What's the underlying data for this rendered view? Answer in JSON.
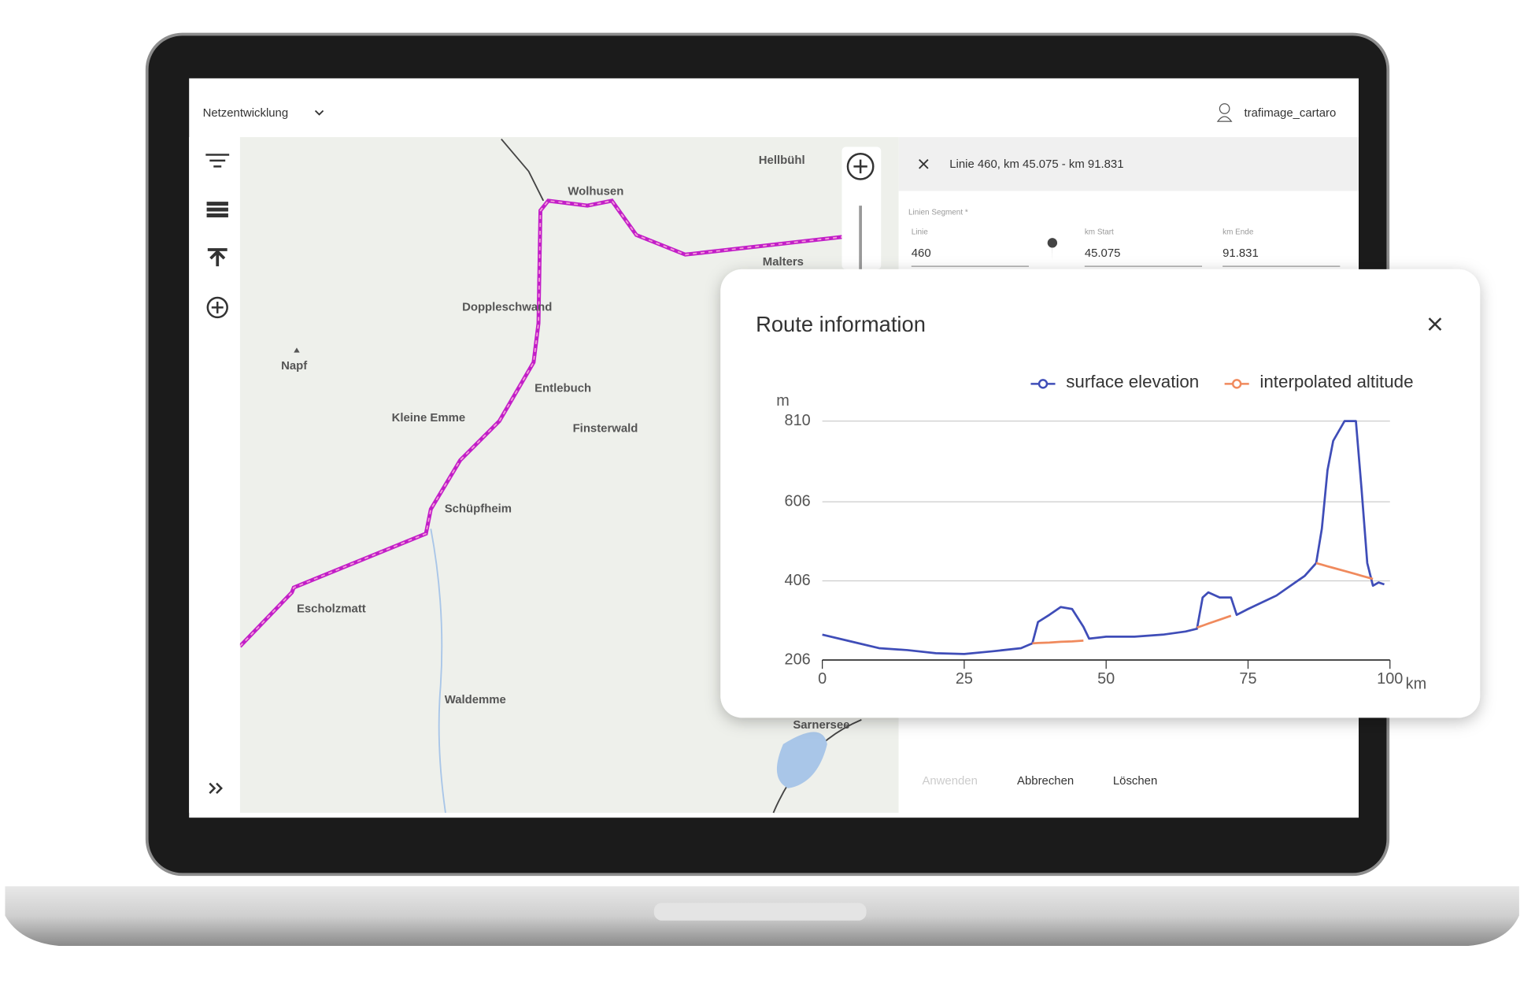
{
  "app": {
    "workspace": "Netzentwicklung",
    "user": "trafimage_cartaro"
  },
  "map": {
    "labels": [
      "Hellbühl",
      "Wolhusen",
      "Malters",
      "Doppleschwand",
      "Napf",
      "Entlebuch",
      "Kleine Emme",
      "Finsterwald",
      "Schüpfheim",
      "Escholzmatt",
      "Waldemme",
      "Sarnersee"
    ]
  },
  "panel": {
    "title": "Linie 460, km 45.075 - km 91.831",
    "segment_label": "Linien Segment *",
    "fields": [
      {
        "label": "Linie",
        "value": "460"
      },
      {
        "label": "km Start",
        "value": "45.075"
      },
      {
        "label": "km Ende",
        "value": "91.831"
      }
    ],
    "buttons": [
      "Anwenden",
      "Abbrechen",
      "Löschen"
    ]
  },
  "chart_data": {
    "type": "line",
    "title": "Route information",
    "y_label": "m",
    "x_label": "km",
    "x": [
      0,
      5,
      10,
      15,
      20,
      25,
      30,
      35,
      37,
      38,
      40,
      42,
      44,
      46,
      47,
      50,
      55,
      60,
      64,
      66,
      67,
      68,
      70,
      72,
      73,
      75,
      80,
      85,
      87,
      88,
      89,
      90,
      92,
      94,
      95,
      96,
      97,
      98,
      99
    ],
    "series": [
      {
        "name": "surface elevation",
        "color": "#3f4db8",
        "values": [
          270,
          253,
          236,
          231,
          223,
          221,
          228,
          236,
          248,
          302,
          320,
          340,
          335,
          290,
          260,
          265,
          265,
          270,
          278,
          285,
          364,
          377,
          364,
          364,
          320,
          335,
          369,
          419,
          451,
          538,
          686,
          760,
          810,
          810,
          637,
          451,
          394,
          402,
          397
        ]
      },
      {
        "name": "interpolated altitude",
        "color": "#f08a5d",
        "values": [
          null,
          null,
          null,
          null,
          null,
          null,
          null,
          null,
          248,
          249,
          250,
          252,
          253,
          255,
          null,
          null,
          null,
          null,
          null,
          288,
          293,
          298,
          308,
          318,
          null,
          null,
          null,
          null,
          451,
          447,
          443,
          439,
          431,
          423,
          419,
          415,
          411,
          null,
          null
        ]
      }
    ],
    "xlim": [
      0,
      100
    ],
    "xticks": [
      0,
      25,
      50,
      75,
      100
    ],
    "ylim": [
      206,
      810
    ],
    "yticks": [
      206,
      406,
      606,
      810
    ],
    "grid": true
  }
}
